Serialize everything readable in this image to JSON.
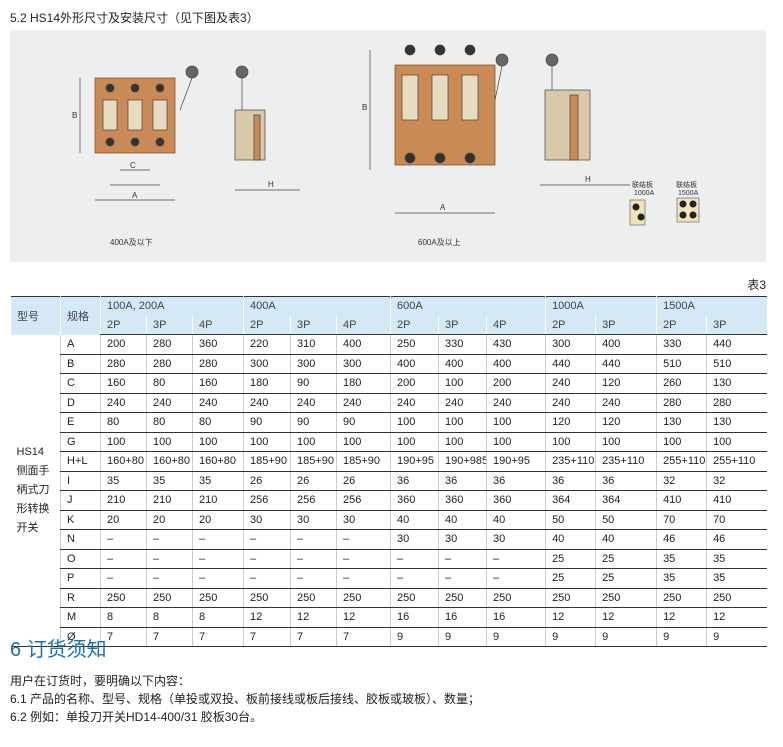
{
  "section_title": "5.2  HS14外形尺寸及安装尺寸（见下图及表3）",
  "drawing": {
    "left_caption": "400A及以下",
    "right_caption": "600A及以上",
    "link_1000": [
      "联结板",
      "1000A"
    ],
    "link_1500": [
      "联结板",
      "1500A"
    ],
    "plate_color": "#c98a55"
  },
  "table": {
    "caption": "表3",
    "col_type": "型号",
    "col_spec": "规格",
    "groups": [
      "100A, 200A",
      "400A",
      "600A",
      "1000A",
      "1500A"
    ],
    "subs": [
      "2P",
      "3P",
      "4P",
      "2P",
      "3P",
      "4P",
      "2P",
      "3P",
      "4P",
      "2P",
      "3P",
      "2P",
      "3P"
    ],
    "type_label": [
      "HS14",
      "侧面手",
      "柄式刀",
      "形转换",
      "开关"
    ],
    "rows": [
      {
        "k": "A",
        "v": [
          "200",
          "280",
          "360",
          "220",
          "310",
          "400",
          "250",
          "330",
          "430",
          "300",
          "400",
          "330",
          "440"
        ]
      },
      {
        "k": "B",
        "v": [
          "280",
          "280",
          "280",
          "300",
          "300",
          "300",
          "400",
          "400",
          "400",
          "440",
          "440",
          "510",
          "510"
        ]
      },
      {
        "k": "C",
        "v": [
          "160",
          "80",
          "160",
          "180",
          "90",
          "180",
          "200",
          "100",
          "200",
          "240",
          "120",
          "260",
          "130"
        ]
      },
      {
        "k": "D",
        "v": [
          "240",
          "240",
          "240",
          "240",
          "240",
          "240",
          "240",
          "240",
          "240",
          "240",
          "240",
          "280",
          "280"
        ]
      },
      {
        "k": "E",
        "v": [
          "80",
          "80",
          "80",
          "90",
          "90",
          "90",
          "100",
          "100",
          "100",
          "120",
          "120",
          "130",
          "130"
        ]
      },
      {
        "k": "G",
        "v": [
          "100",
          "100",
          "100",
          "100",
          "100",
          "100",
          "100",
          "100",
          "100",
          "100",
          "100",
          "100",
          "100"
        ]
      },
      {
        "k": "H+L",
        "v": [
          "160+80",
          "160+80",
          "160+80",
          "185+90",
          "185+90",
          "185+90",
          "190+95",
          "190+985",
          "190+95",
          "235+110",
          "235+110",
          "255+110",
          "255+110"
        ]
      },
      {
        "k": "I",
        "v": [
          "35",
          "35",
          "35",
          "26",
          "26",
          "26",
          "36",
          "36",
          "36",
          "36",
          "36",
          "32",
          "32"
        ]
      },
      {
        "k": "J",
        "v": [
          "210",
          "210",
          "210",
          "256",
          "256",
          "256",
          "360",
          "360",
          "360",
          "364",
          "364",
          "410",
          "410"
        ]
      },
      {
        "k": "K",
        "v": [
          "20",
          "20",
          "20",
          "30",
          "30",
          "30",
          "40",
          "40",
          "40",
          "50",
          "50",
          "70",
          "70"
        ]
      },
      {
        "k": "N",
        "v": [
          "–",
          "–",
          "–",
          "–",
          "–",
          "–",
          "30",
          "30",
          "30",
          "40",
          "40",
          "46",
          "46"
        ]
      },
      {
        "k": "O",
        "v": [
          "–",
          "–",
          "–",
          "–",
          "–",
          "–",
          "–",
          "–",
          "–",
          "25",
          "25",
          "35",
          "35"
        ]
      },
      {
        "k": "P",
        "v": [
          "–",
          "–",
          "–",
          "–",
          "–",
          "–",
          "–",
          "–",
          "–",
          "25",
          "25",
          "35",
          "35"
        ]
      },
      {
        "k": "R",
        "v": [
          "250",
          "250",
          "250",
          "250",
          "250",
          "250",
          "250",
          "250",
          "250",
          "250",
          "250",
          "250",
          "250"
        ]
      },
      {
        "k": "M",
        "v": [
          "8",
          "8",
          "8",
          "12",
          "12",
          "12",
          "16",
          "16",
          "16",
          "12",
          "12",
          "12",
          "12"
        ]
      },
      {
        "k": "Ø",
        "v": [
          "7",
          "7",
          "7",
          "7",
          "7",
          "7",
          "9",
          "9",
          "9",
          "9",
          "9",
          "9",
          "9"
        ]
      }
    ]
  },
  "order": {
    "title": "6 订货须知",
    "line0": "用户在订货时，要明确以下内容：",
    "line1": "6.1 产品的名称、型号、规格（单投或双投、板前接线或板后接线、胶板或玻板）、数量；",
    "line2": "6.2 例如：单投刀开关HD14-400/31 胶板30台。"
  }
}
